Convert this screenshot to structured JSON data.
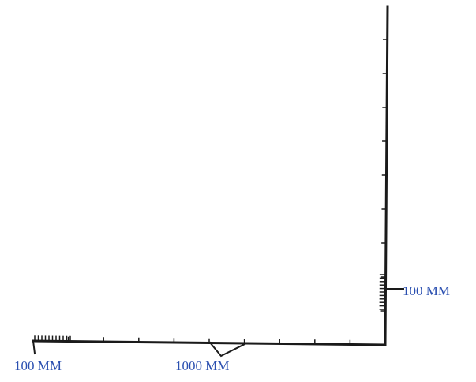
{
  "labels": {
    "horizontal_small": "100 MM",
    "horizontal_large": "1000 MM",
    "vertical_small": "100 MM"
  },
  "colors": {
    "ruler": "#1a1a1a",
    "label": "#2a4fb0"
  }
}
